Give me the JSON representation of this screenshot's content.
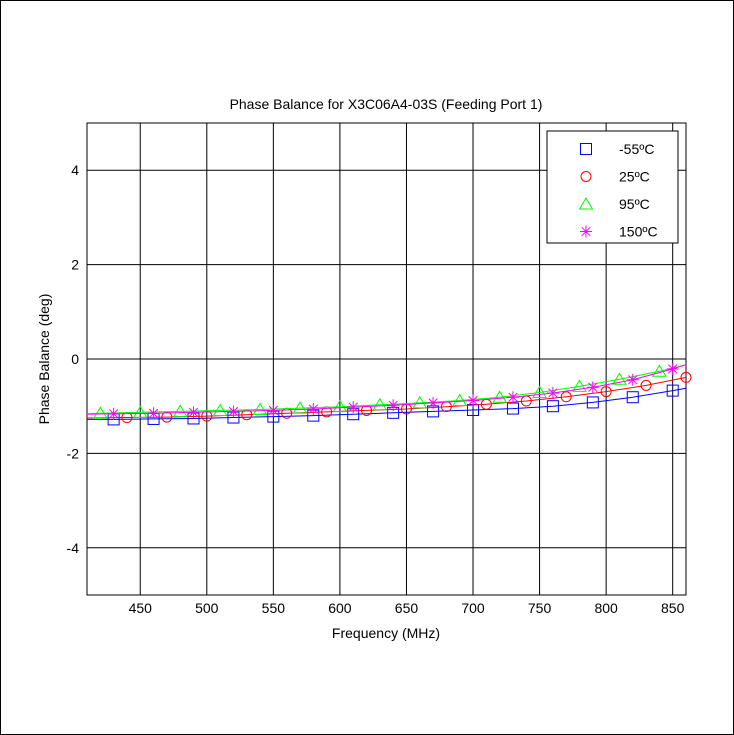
{
  "chart_data": {
    "type": "line",
    "title": "Phase Balance for X3C06A4-03S (Feeding Port 1)",
    "xlabel": "Frequency (MHz)",
    "ylabel": "Phase Balance (deg)",
    "xlim": [
      410,
      860
    ],
    "ylim": [
      -5,
      5
    ],
    "xticks": [
      450,
      500,
      550,
      600,
      650,
      700,
      750,
      800,
      850
    ],
    "yticks": [
      -4,
      -2,
      0,
      2,
      4
    ],
    "grid": true,
    "legend_position": "top-right",
    "series": [
      {
        "name": "-55ºC",
        "color": "#0000ff",
        "marker": "square",
        "x": [
          430,
          460,
          490,
          520,
          550,
          580,
          610,
          640,
          670,
          700,
          730,
          760,
          790,
          820,
          850
        ],
        "y": [
          -1.28,
          -1.27,
          -1.26,
          -1.24,
          -1.22,
          -1.2,
          -1.17,
          -1.14,
          -1.11,
          -1.08,
          -1.05,
          -1.0,
          -0.92,
          -0.81,
          -0.67
        ],
        "line_x": [
          410,
          430,
          460,
          490,
          520,
          550,
          580,
          610,
          640,
          670,
          700,
          730,
          760,
          790,
          820,
          850,
          860
        ],
        "line_y": [
          -1.28,
          -1.28,
          -1.27,
          -1.26,
          -1.24,
          -1.22,
          -1.2,
          -1.17,
          -1.14,
          -1.11,
          -1.08,
          -1.05,
          -1.0,
          -0.92,
          -0.81,
          -0.67,
          -0.62
        ]
      },
      {
        "name": "25ºC",
        "color": "#ff0000",
        "marker": "circle",
        "x": [
          440,
          470,
          500,
          530,
          560,
          590,
          620,
          650,
          680,
          710,
          740,
          770,
          800,
          830,
          860
        ],
        "y": [
          -1.24,
          -1.23,
          -1.21,
          -1.18,
          -1.15,
          -1.12,
          -1.09,
          -1.06,
          -1.01,
          -0.96,
          -0.89,
          -0.8,
          -0.69,
          -0.56,
          -0.39
        ],
        "line_x": [
          410,
          440,
          470,
          500,
          530,
          560,
          590,
          620,
          650,
          680,
          710,
          740,
          770,
          800,
          830,
          860
        ],
        "line_y": [
          -1.25,
          -1.24,
          -1.23,
          -1.21,
          -1.18,
          -1.15,
          -1.12,
          -1.09,
          -1.06,
          -1.01,
          -0.96,
          -0.89,
          -0.8,
          -0.69,
          -0.56,
          -0.39
        ]
      },
      {
        "name": "95ºC",
        "color": "#00ff00",
        "marker": "triangle",
        "x": [
          420,
          450,
          480,
          510,
          540,
          570,
          600,
          630,
          660,
          690,
          720,
          750,
          780,
          810,
          840
        ],
        "y": [
          -1.15,
          -1.13,
          -1.11,
          -1.09,
          -1.07,
          -1.04,
          -1.01,
          -0.97,
          -0.93,
          -0.88,
          -0.81,
          -0.71,
          -0.58,
          -0.43,
          -0.26
        ],
        "line_x": [
          410,
          420,
          450,
          480,
          510,
          540,
          570,
          600,
          630,
          660,
          690,
          720,
          750,
          780,
          810,
          840,
          860
        ],
        "line_y": [
          -1.16,
          -1.15,
          -1.13,
          -1.11,
          -1.09,
          -1.07,
          -1.04,
          -1.01,
          -0.97,
          -0.93,
          -0.88,
          -0.81,
          -0.71,
          -0.58,
          -0.43,
          -0.26,
          -0.12
        ]
      },
      {
        "name": "150ºC",
        "color": "#ff00ff",
        "marker": "asterisk",
        "x": [
          430,
          460,
          490,
          520,
          550,
          580,
          610,
          640,
          670,
          700,
          730,
          760,
          790,
          820,
          850
        ],
        "y": [
          -1.16,
          -1.15,
          -1.13,
          -1.11,
          -1.09,
          -1.06,
          -1.02,
          -0.98,
          -0.93,
          -0.88,
          -0.81,
          -0.72,
          -0.6,
          -0.44,
          -0.21
        ],
        "line_x": [
          410,
          430,
          460,
          490,
          520,
          550,
          580,
          610,
          640,
          670,
          700,
          730,
          760,
          790,
          820,
          850,
          860
        ],
        "line_y": [
          -1.17,
          -1.16,
          -1.15,
          -1.13,
          -1.11,
          -1.09,
          -1.06,
          -1.02,
          -0.98,
          -0.93,
          -0.88,
          -0.81,
          -0.72,
          -0.6,
          -0.44,
          -0.21,
          -0.12
        ]
      }
    ]
  }
}
